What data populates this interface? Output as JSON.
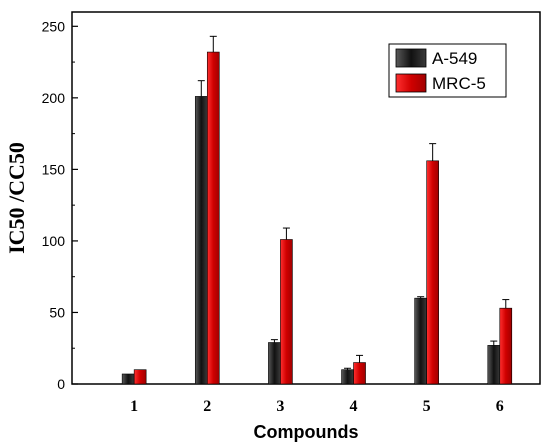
{
  "chart_data": {
    "type": "bar",
    "xlabel": "Compounds",
    "ylabel": "IC50 /CC50",
    "categories": [
      "1",
      "2",
      "3",
      "4",
      "5",
      "6"
    ],
    "ylim": [
      0,
      260
    ],
    "yticks": [
      0,
      50,
      100,
      150,
      200,
      250
    ],
    "grid": false,
    "legend_position": "top-right",
    "series": [
      {
        "name": "A-549",
        "color": "#222222",
        "values": [
          7,
          201,
          29,
          10,
          60,
          27
        ],
        "errors": [
          0,
          11,
          2,
          1,
          1,
          3
        ]
      },
      {
        "name": "MRC-5",
        "color": "#e00000",
        "values": [
          10,
          232,
          101,
          15,
          156,
          53
        ],
        "errors": [
          0,
          11,
          8,
          5,
          12,
          6
        ]
      }
    ]
  }
}
